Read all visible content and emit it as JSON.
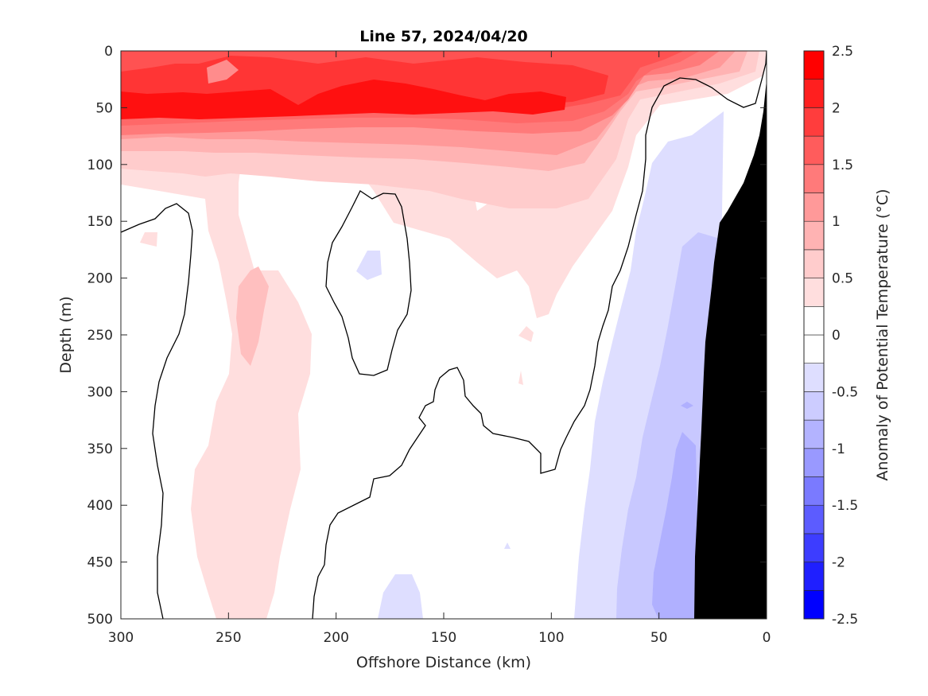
{
  "chart_data": {
    "type": "heatmap",
    "title": "Line 57, 2024/04/20",
    "xlabel": "Offshore Distance (km)",
    "ylabel": "Depth (m)",
    "colorbar_label": "Anomaly of Potential Temperature (°C)",
    "xlim": [
      300,
      0
    ],
    "ylim": [
      0,
      500
    ],
    "x_reversed": true,
    "y_reversed": true,
    "x_ticks": [
      300,
      250,
      200,
      150,
      100,
      50,
      0
    ],
    "y_ticks": [
      0,
      50,
      100,
      150,
      200,
      250,
      300,
      350,
      400,
      450,
      500
    ],
    "colorbar_range": [
      -2.5,
      2.5
    ],
    "colorbar_step": 0.25,
    "colorbar_ticks": [
      "2.5",
      "2",
      "1.5",
      "1",
      "0.5",
      "0",
      "-0.5",
      "-1",
      "-1.5",
      "-2",
      "-2.5"
    ],
    "colorbar_tick_values": [
      2.5,
      2,
      1.5,
      1,
      0.5,
      0,
      -0.5,
      -1,
      -1.5,
      -2,
      -2.5
    ],
    "colormap": [
      "#0000ff",
      "#1f1fff",
      "#3d3dff",
      "#5c5cff",
      "#7a7aff",
      "#9999ff",
      "#b3b3ff",
      "#ccccff",
      "#dedeff",
      "#ffffff",
      "#ffffff",
      "#ffdede",
      "#ffcccc",
      "#ffb3b3",
      "#ff9999",
      "#ff7a7a",
      "#ff5c5c",
      "#ff3d3d",
      "#ff1f1f",
      "#ff0000"
    ],
    "land_color": "#000000",
    "zero_contour_color": "#000000",
    "fields": [
      {
        "name": "surface-warm-layer",
        "depth_range": [
          0,
          110
        ],
        "x_range": [
          300,
          15
        ],
        "anomaly_min": 1.0,
        "anomaly_max": 2.5,
        "core_depth": 45
      },
      {
        "name": "offshore-warm-column",
        "depth_range": [
          100,
          500
        ],
        "x_range": [
          270,
          220
        ],
        "anomaly_min": 0.25,
        "anomaly_max": 0.75
      },
      {
        "name": "inshore-cool-band",
        "depth_range": [
          60,
          500
        ],
        "x_range": [
          90,
          20
        ],
        "anomaly_min": -1.25,
        "anomaly_max": -0.25
      }
    ]
  }
}
